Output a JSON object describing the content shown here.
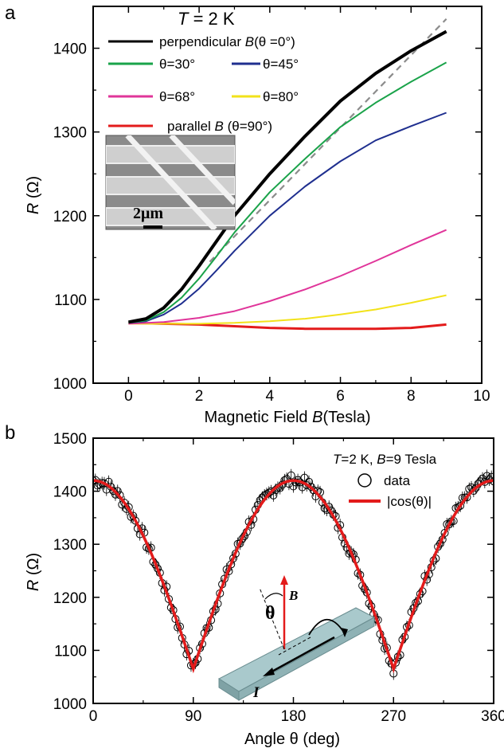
{
  "colors": {
    "black": "#000000",
    "green": "#1aa34a",
    "blue": "#1f2f8f",
    "magenta": "#e0359a",
    "yellow": "#f2e21a",
    "red": "#e31b1b",
    "dashed": "#8c8c8c",
    "substrate": "#a9c9cc"
  },
  "panel_a": {
    "letter": "a",
    "annotation": {
      "var": "T",
      "rest": " = 2 K"
    },
    "inset": {
      "scale_label": "2μm",
      "icon": "sem-micrograph-icon"
    }
  },
  "panel_b": {
    "letter": "b",
    "annotation": {
      "t_var": "T",
      "t_rest": "=2 K, ",
      "b_var": "B",
      "b_rest": "=9 Tesla"
    },
    "schematic": {
      "theta": "θ",
      "b": "B",
      "i": "I",
      "icon": "field-geometry-icon"
    }
  },
  "chart_data": [
    {
      "type": "line",
      "title": "",
      "xlabel": "Magnetic Field B(Tesla)",
      "xlabel_parts": {
        "text": "Magnetic Field ",
        "var": "B",
        "unit": "(Tesla)"
      },
      "ylabel": "R (Ω)",
      "ylabel_parts": {
        "var": "R",
        "unit": " (Ω)"
      },
      "xlim": [
        -1,
        10
      ],
      "ylim": [
        1000,
        1450
      ],
      "xticks": [
        0,
        2,
        4,
        6,
        8,
        10
      ],
      "yticks": [
        1000,
        1100,
        1200,
        1300,
        1400
      ],
      "xtick_labels": [
        "0",
        "2",
        "4",
        "6",
        "8",
        "10"
      ],
      "ytick_labels": [
        "1000",
        "1100",
        "1200",
        "1300",
        "1400"
      ],
      "grid": false,
      "legend_position": "top-left",
      "series": [
        {
          "name": "perpendicular B(θ =0°)",
          "legend": {
            "pre": "perpendicular ",
            "var": "B",
            "post": "(θ =0°)"
          },
          "color": "#000000",
          "x": [
            0,
            0.5,
            1,
            1.5,
            2,
            2.5,
            3,
            4,
            5,
            6,
            7,
            8,
            9
          ],
          "y": [
            1073,
            1077,
            1090,
            1112,
            1140,
            1170,
            1200,
            1250,
            1295,
            1337,
            1370,
            1397,
            1420
          ]
        },
        {
          "name": "θ=30°",
          "legend": {
            "pre": "θ=30°",
            "var": "",
            "post": ""
          },
          "color": "#1aa34a",
          "x": [
            0,
            0.5,
            1,
            1.5,
            2,
            2.5,
            3,
            4,
            5,
            6,
            7,
            8,
            9
          ],
          "y": [
            1072,
            1075,
            1085,
            1102,
            1125,
            1152,
            1180,
            1228,
            1268,
            1306,
            1335,
            1360,
            1383
          ]
        },
        {
          "name": "θ=45°",
          "legend": {
            "pre": "θ=45°",
            "var": "",
            "post": ""
          },
          "color": "#1f2f8f",
          "x": [
            0,
            0.5,
            1,
            1.5,
            2,
            2.5,
            3,
            4,
            5,
            6,
            7,
            8,
            9
          ],
          "y": [
            1072,
            1074,
            1082,
            1095,
            1113,
            1135,
            1158,
            1200,
            1235,
            1265,
            1290,
            1307,
            1323
          ]
        },
        {
          "name": "θ=68°",
          "legend": {
            "pre": "θ=68°",
            "var": "",
            "post": ""
          },
          "color": "#e0359a",
          "x": [
            0,
            1,
            2,
            3,
            4,
            5,
            6,
            7,
            8,
            9
          ],
          "y": [
            1071,
            1073,
            1078,
            1086,
            1098,
            1112,
            1128,
            1146,
            1165,
            1183
          ]
        },
        {
          "name": "θ=80°",
          "legend": {
            "pre": "θ=80°",
            "var": "",
            "post": ""
          },
          "color": "#f2e21a",
          "x": [
            0,
            1,
            2,
            3,
            4,
            5,
            6,
            7,
            8,
            9
          ],
          "y": [
            1071,
            1071,
            1071,
            1072,
            1074,
            1077,
            1082,
            1088,
            1096,
            1105
          ]
        },
        {
          "name": "parallel B (θ=90°)",
          "legend": {
            "pre": "parallel ",
            "var": "B",
            "post": " (θ=90°)"
          },
          "color": "#e31b1b",
          "x": [
            0,
            1,
            2,
            3,
            4,
            5,
            6,
            7,
            8,
            9
          ],
          "y": [
            1072,
            1071,
            1070,
            1068,
            1066,
            1065,
            1065,
            1065,
            1066,
            1070
          ]
        }
      ],
      "reference_line": {
        "style": "dashed",
        "x": [
          2.3,
          9.0
        ],
        "y": [
          1145,
          1435
        ]
      }
    },
    {
      "type": "scatter",
      "title": "",
      "xlabel": "Angle θ (deg)",
      "ylabel": "R (Ω)",
      "ylabel_parts": {
        "var": "R",
        "unit": " (Ω)"
      },
      "xlim": [
        0,
        360
      ],
      "ylim": [
        1000,
        1500
      ],
      "xticks": [
        0,
        90,
        180,
        270,
        360
      ],
      "yticks": [
        1000,
        1100,
        1200,
        1300,
        1400,
        1500
      ],
      "xtick_labels": [
        "0",
        "90",
        "180",
        "270",
        "360"
      ],
      "ytick_labels": [
        "1000",
        "1100",
        "1200",
        "1300",
        "1400",
        "1500"
      ],
      "grid": false,
      "legend_position": "top-right",
      "series": [
        {
          "name": "data",
          "marker": "open-circle",
          "color": "#000000",
          "x_step": 4,
          "model": "abs-cos",
          "r_min": 1065,
          "r_max": 1420
        },
        {
          "name": "|cos(θ)|",
          "color": "#e31b1b",
          "model": "abs-cos",
          "r_min": 1065,
          "r_max": 1420
        }
      ]
    }
  ]
}
